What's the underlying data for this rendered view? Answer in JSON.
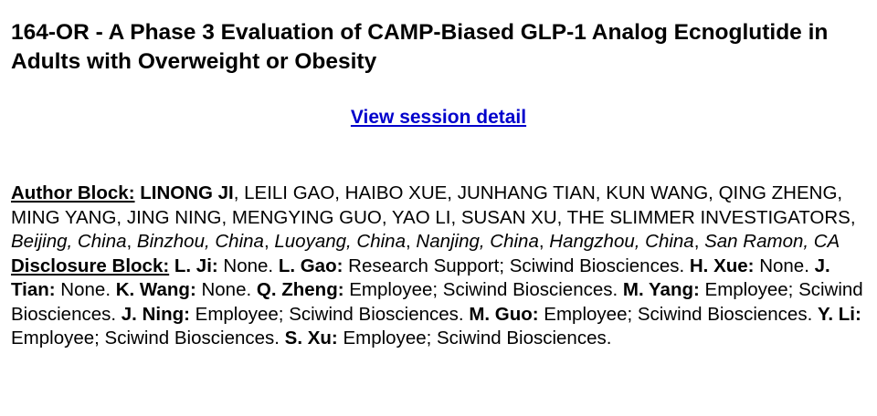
{
  "title": "164-OR - A Phase 3 Evaluation of CAMP-Biased GLP-1 Analog Ecnoglutide in Adults with Overweight or Obesity",
  "session_link": "View session detail",
  "author_block": {
    "label": "Author Block:",
    "lead_author": "LINONG JI",
    "other_authors": ", LEILI GAO, HAIBO XUE, JUNHANG TIAN, KUN WANG, QING ZHENG, MING YANG, JING NING, MENGYING GUO, YAO LI, SUSAN XU, THE SLIMMER INVESTIGATORS, ",
    "locations": [
      "Beijing, China",
      "Binzhou, China",
      "Luoyang, China",
      "Nanjing, China",
      "Hangzhou, China",
      "San Ramon, CA"
    ],
    "separator": ", "
  },
  "disclosure_block": {
    "label": "Disclosure Block:",
    "entries": [
      {
        "name": "L. Ji:",
        "text": " None. "
      },
      {
        "name": "L. Gao:",
        "text": " Research Support; Sciwind Biosciences. "
      },
      {
        "name": "H. Xue:",
        "text": " None. "
      },
      {
        "name": "J. Tian:",
        "text": " None. "
      },
      {
        "name": "K. Wang:",
        "text": " None. "
      },
      {
        "name": "Q. Zheng:",
        "text": " Employee; Sciwind Biosciences. "
      },
      {
        "name": "M. Yang:",
        "text": " Employee; Sciwind Biosciences. "
      },
      {
        "name": "J. Ning:",
        "text": " Employee; Sciwind Biosciences. "
      },
      {
        "name": "M. Guo:",
        "text": " Employee; Sciwind Biosciences. "
      },
      {
        "name": "Y. Li:",
        "text": " Employee; Sciwind Biosciences. "
      },
      {
        "name": "S. Xu:",
        "text": " Employee; Sciwind Biosciences."
      }
    ]
  },
  "colors": {
    "link": "#0000cc",
    "text": "#000000",
    "background": "#ffffff"
  }
}
